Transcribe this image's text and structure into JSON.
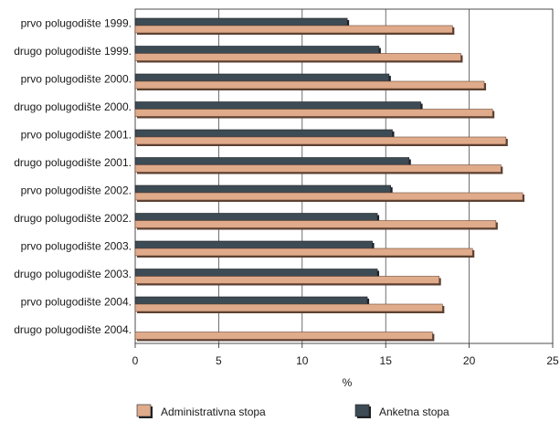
{
  "chart_data": {
    "type": "bar",
    "orientation": "horizontal",
    "categories": [
      "prvo polugodište 1999.",
      "drugo polugodište 1999.",
      "prvo polugodište 2000.",
      "drugo polugodište 2000.",
      "prvo polugodište 2001.",
      "drugo polugodište 2001.",
      "prvo polugodište 2002.",
      "drugo polugodište 2002.",
      "prvo polugodište 2003.",
      "drugo polugodište 2003.",
      "prvo polugodište 2004.",
      "drugo polugodište 2004."
    ],
    "series": [
      {
        "name": "Anketna stopa",
        "color": "#3d4b55",
        "values": [
          12.7,
          14.6,
          15.2,
          17.1,
          15.4,
          16.4,
          15.3,
          14.5,
          14.2,
          14.5,
          13.9,
          null
        ]
      },
      {
        "name": "Administrativna stopa",
        "color": "#e0ab8b",
        "values": [
          19.0,
          19.5,
          20.9,
          21.4,
          22.2,
          21.9,
          23.2,
          21.6,
          20.2,
          18.2,
          18.4,
          17.8
        ]
      }
    ],
    "xlabel": "%",
    "xlim": [
      0,
      25
    ],
    "xticks": [
      0,
      5,
      10,
      15,
      20,
      25
    ],
    "grid": true,
    "legend_position": "bottom",
    "legend_order": [
      "Administrativna stopa",
      "Anketna stopa"
    ]
  }
}
